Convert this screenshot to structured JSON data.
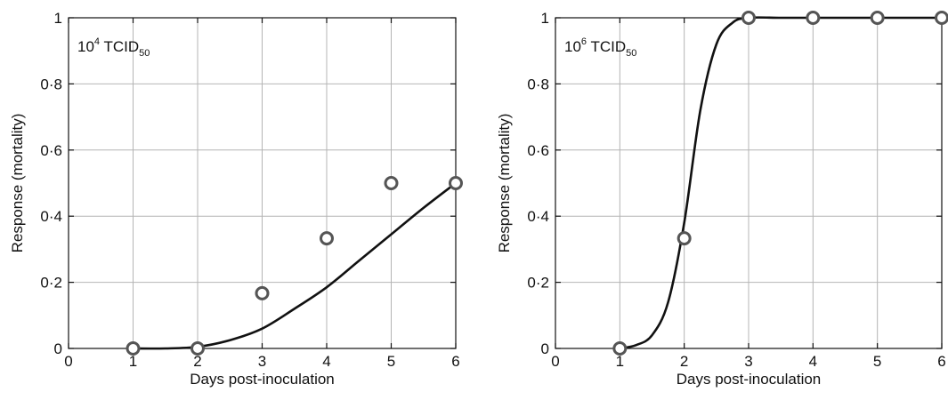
{
  "chart_data": [
    {
      "type": "line",
      "annotation": {
        "prefix": "10",
        "exponent": "4",
        "main": " TCID",
        "subscript": "50"
      },
      "xlabel": "Days post-inoculation",
      "ylabel": "Response (mortality)",
      "xlim": [
        0,
        6
      ],
      "ylim": [
        0,
        1
      ],
      "xticks": [
        "0",
        "1",
        "2",
        "3",
        "4",
        "5",
        "6"
      ],
      "yticks": [
        "0",
        "0·2",
        "0·4",
        "0·6",
        "0·8",
        "1"
      ],
      "grid": true,
      "points": {
        "x": [
          1,
          2,
          3,
          4,
          5,
          6
        ],
        "y": [
          0,
          0,
          0.167,
          0.333,
          0.5,
          0.5
        ]
      },
      "curve": {
        "x": [
          1,
          1.5,
          2,
          2.5,
          3,
          3.5,
          4,
          4.5,
          5,
          5.5,
          6
        ],
        "y": [
          0,
          0,
          0.005,
          0.025,
          0.06,
          0.12,
          0.185,
          0.265,
          0.345,
          0.425,
          0.5
        ]
      }
    },
    {
      "type": "line",
      "annotation": {
        "prefix": "10",
        "exponent": "6",
        "main": " TCID",
        "subscript": "50"
      },
      "xlabel": "Days post-inoculation",
      "ylabel": "Response (mortality)",
      "xlim": [
        0,
        6
      ],
      "ylim": [
        0,
        1
      ],
      "xticks": [
        "0",
        "1",
        "2",
        "3",
        "4",
        "5",
        "6"
      ],
      "yticks": [
        "0",
        "0·2",
        "0·4",
        "0·6",
        "0·8",
        "1"
      ],
      "grid": true,
      "points": {
        "x": [
          1,
          2,
          3,
          4,
          5,
          6
        ],
        "y": [
          0,
          0.333,
          1,
          1,
          1,
          1
        ]
      },
      "curve": {
        "x": [
          1,
          1.25,
          1.5,
          1.75,
          2,
          2.25,
          2.5,
          2.75,
          3,
          3.5,
          4,
          5,
          6
        ],
        "y": [
          0,
          0.01,
          0.04,
          0.14,
          0.38,
          0.72,
          0.92,
          0.985,
          1,
          1,
          1,
          1,
          1
        ]
      }
    }
  ]
}
